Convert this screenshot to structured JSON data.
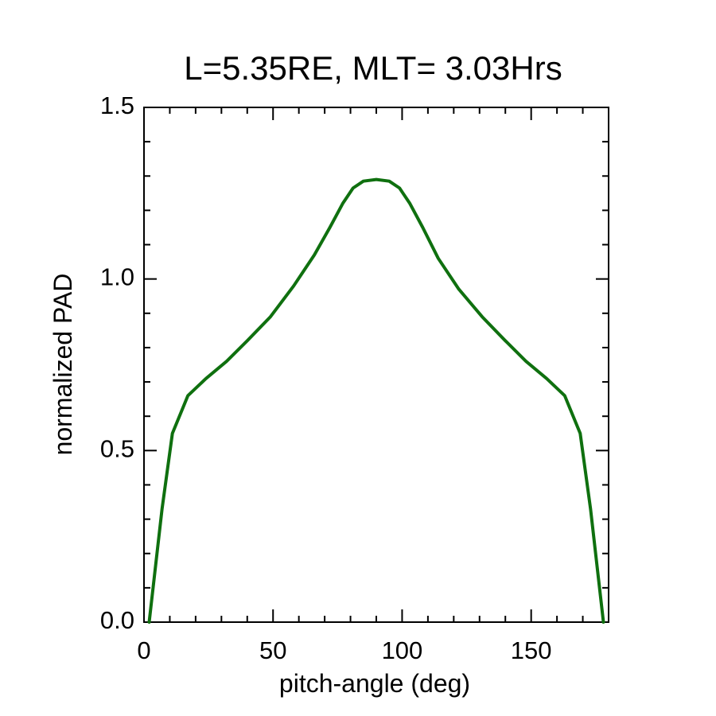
{
  "chart_data": {
    "type": "line",
    "title": "L=5.35RE, MLT= 3.03Hrs",
    "xlabel": "pitch-angle (deg)",
    "ylabel": "normalized PAD",
    "xlim": [
      0,
      180
    ],
    "ylim": [
      0.0,
      1.5
    ],
    "x_major_ticks": [
      0,
      50,
      100,
      150
    ],
    "x_tick_labels": [
      "0",
      "50",
      "100",
      "150"
    ],
    "x_minor_step": 10,
    "y_major_ticks": [
      0.0,
      0.5,
      1.0,
      1.5
    ],
    "y_tick_labels": [
      "0.0",
      "0.5",
      "1.0",
      "1.5"
    ],
    "y_minor_step": 0.1,
    "grid": false,
    "legend": "none",
    "series": [
      {
        "name": "PAD",
        "color": "#0f700f",
        "x": [
          2,
          7,
          11,
          17,
          24,
          32,
          40,
          49,
          58,
          66,
          72,
          77,
          81,
          85,
          90,
          95,
          99,
          103,
          108,
          114,
          122,
          131,
          140,
          148,
          156,
          163,
          169,
          173,
          178
        ],
        "y": [
          0.0,
          0.33,
          0.55,
          0.66,
          0.71,
          0.76,
          0.82,
          0.89,
          0.98,
          1.07,
          1.15,
          1.22,
          1.265,
          1.285,
          1.29,
          1.285,
          1.265,
          1.22,
          1.15,
          1.06,
          0.97,
          0.89,
          0.82,
          0.76,
          0.71,
          0.66,
          0.55,
          0.33,
          0.0
        ]
      }
    ]
  }
}
